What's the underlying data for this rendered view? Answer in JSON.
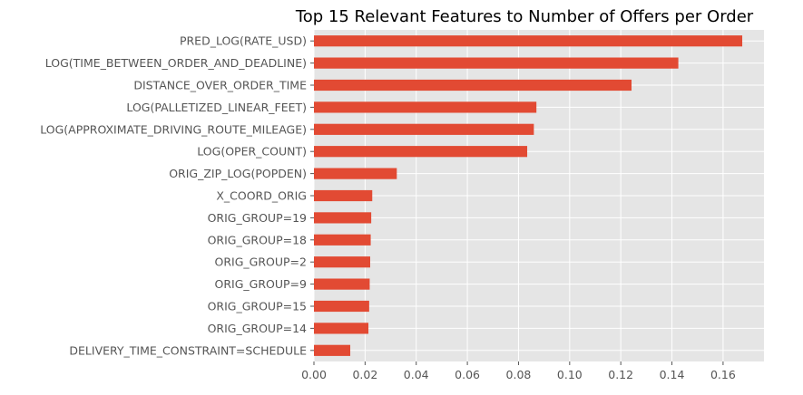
{
  "chart_data": {
    "type": "bar",
    "orientation": "horizontal",
    "title": "Top 15 Relevant Features to Number of Offers per Order",
    "xlabel": "",
    "ylabel": "",
    "grid": true,
    "xlim": [
      0,
      0.176
    ],
    "x_ticks": [
      "0.00",
      "0.02",
      "0.04",
      "0.06",
      "0.08",
      "0.10",
      "0.12",
      "0.14",
      "0.16"
    ],
    "bar_color": "#E24A33",
    "background_color": "#E5E5E5",
    "categories": [
      "PRED_LOG(RATE_USD)",
      "LOG(TIME_BETWEEN_ORDER_AND_DEADLINE)",
      "DISTANCE_OVER_ORDER_TIME",
      "LOG(PALLETIZED_LINEAR_FEET)",
      "LOG(APPROXIMATE_DRIVING_ROUTE_MILEAGE)",
      "LOG(OPER_COUNT)",
      "ORIG_ZIP_LOG(POPDEN)",
      "X_COORD_ORIG",
      "ORIG_GROUP=19",
      "ORIG_GROUP=18",
      "ORIG_GROUP=2",
      "ORIG_GROUP=9",
      "ORIG_GROUP=15",
      "ORIG_GROUP=14",
      "DELIVERY_TIME_CONSTRAINT=SCHEDULE"
    ],
    "values": [
      0.1675,
      0.1425,
      0.1242,
      0.087,
      0.086,
      0.0834,
      0.0324,
      0.0228,
      0.0224,
      0.0222,
      0.022,
      0.0218,
      0.0216,
      0.0213,
      0.0142
    ]
  }
}
